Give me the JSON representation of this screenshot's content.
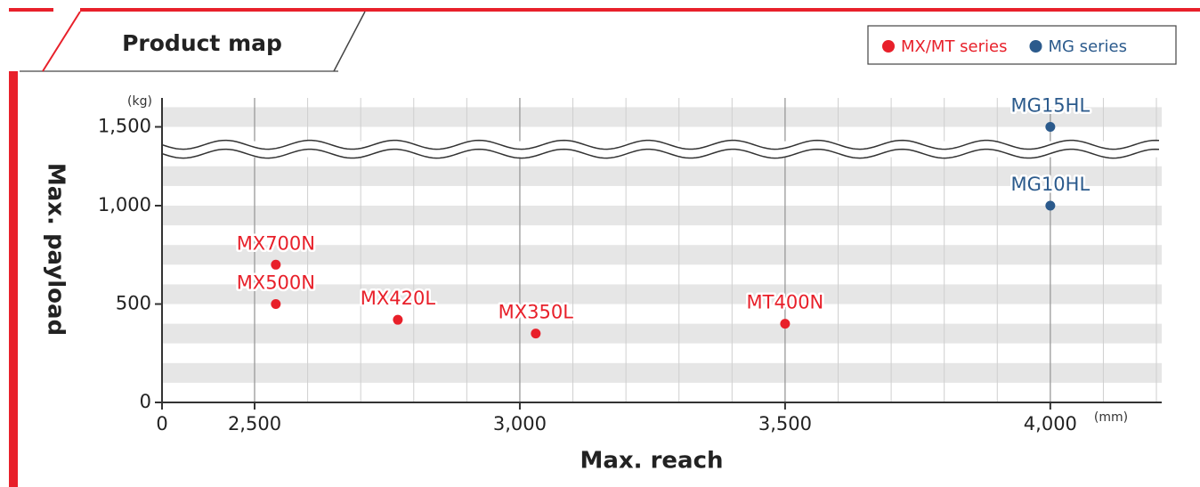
{
  "chart_data": {
    "type": "scatter",
    "title": "Product map",
    "x_label": "Max. reach",
    "y_label": "Max. payload",
    "x_unit": "(mm)",
    "y_unit": "(kg)",
    "xlim": [
      0,
      4210
    ],
    "ylim": [
      0,
      1650
    ],
    "xticks": [
      0,
      {
        "value": 2500,
        "label": "2,500"
      },
      {
        "value": 3000,
        "label": "3,000"
      },
      {
        "value": 3500,
        "label": "3,500"
      },
      {
        "value": 4000,
        "label": "4,000"
      }
    ],
    "yticks": [
      0,
      500,
      {
        "value": 1000,
        "label": "1,000"
      },
      {
        "value": 1500,
        "label": "1,500"
      }
    ],
    "grid": true,
    "legend": "top-right",
    "series": [
      {
        "name": "MX/MT series",
        "color": "#e8202a",
        "labels": [
          "MX700N",
          "MX500N",
          "MX420L",
          "MX350L",
          "MT400N"
        ],
        "x": [
          2540,
          2540,
          2770,
          3030,
          3500
        ],
        "values": [
          700,
          500,
          420,
          350,
          400
        ]
      },
      {
        "name": "MG series",
        "color": "#2b5a8c",
        "labels": [
          "MG15HL",
          "MG10HL"
        ],
        "x": [
          4000,
          4000
        ],
        "values": [
          1500,
          1000
        ]
      }
    ]
  }
}
